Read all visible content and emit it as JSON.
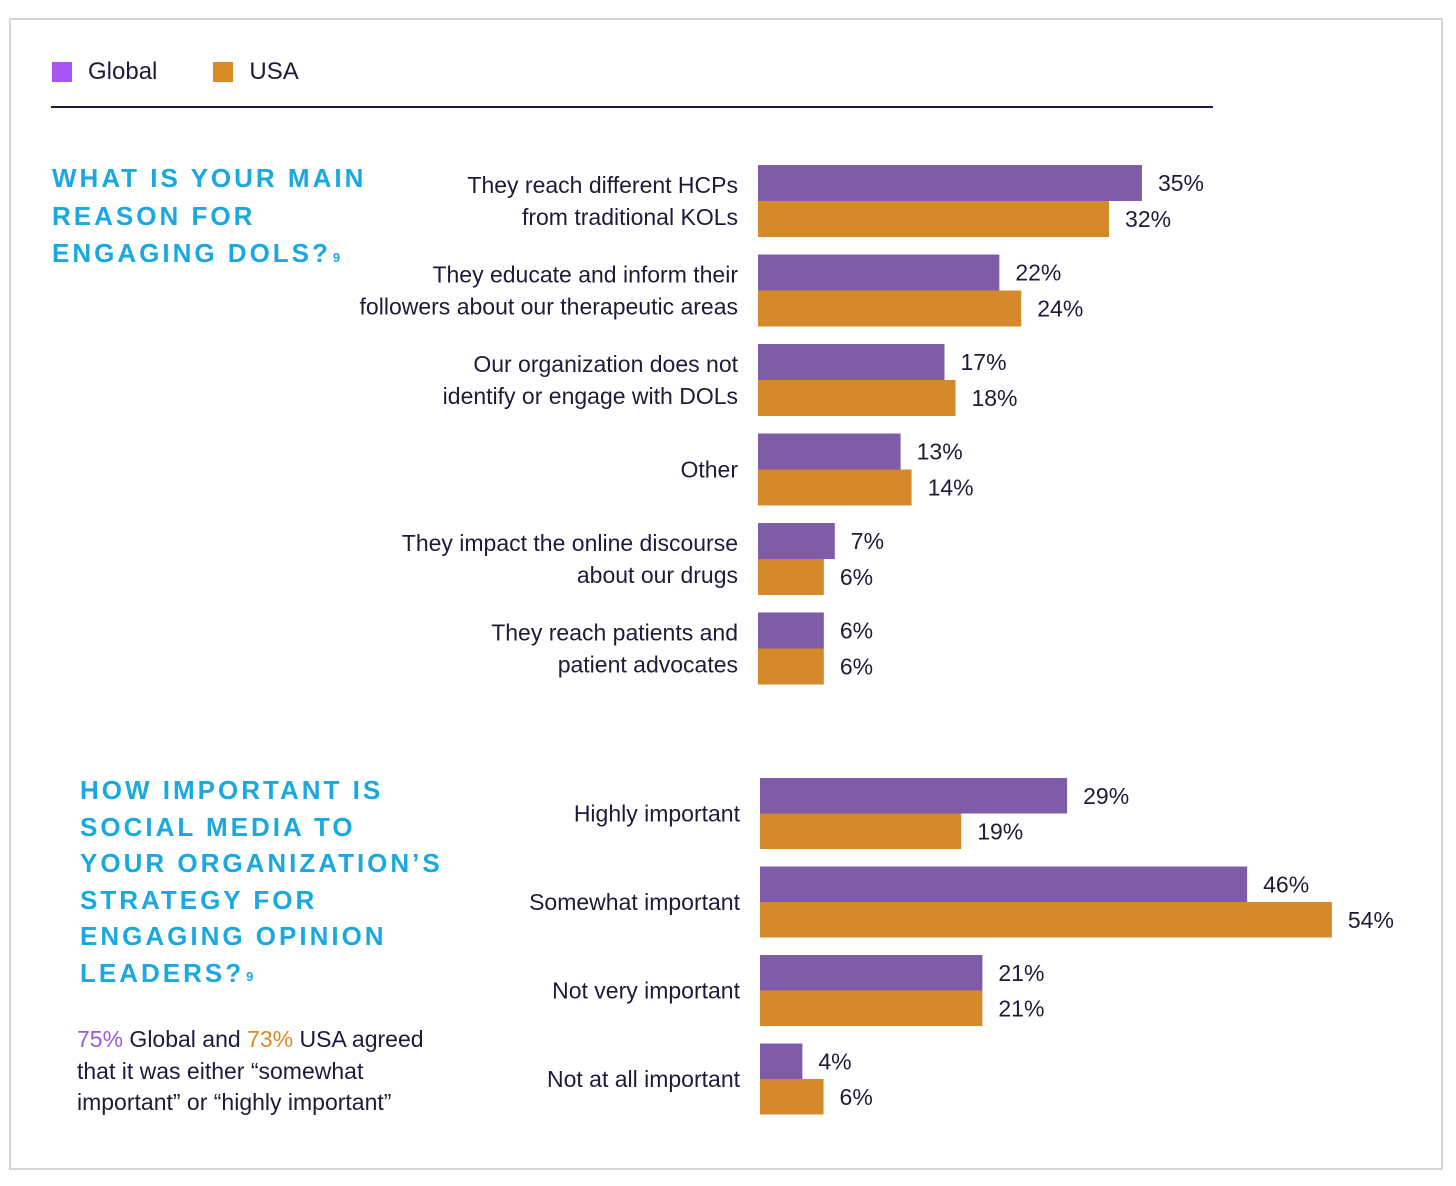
{
  "legend": {
    "global_label": "Global",
    "usa_label": "USA",
    "global_color": "#a855f7",
    "usa_color": "#d88a24"
  },
  "colors": {
    "global_bar": "#7f5ca8",
    "usa_bar": "#d4892a",
    "question_text": "#19a8e0"
  },
  "question1": {
    "text": "WHAT IS YOUR MAIN REASON FOR ENGAGING DOLS?",
    "footnote": "9"
  },
  "question2": {
    "text": "HOW IMPORTANT IS SOCIAL MEDIA TO YOUR ORGANIZATION’S STRATEGY FOR ENGAGING OPINION LEADERS?",
    "footnote": "9"
  },
  "note": {
    "global_pct": "75%",
    "mid1": " Global and ",
    "usa_pct": "73%",
    "rest": " USA agreed that it was either “somewhat important” or “highly important”"
  },
  "chart_data": [
    {
      "type": "bar",
      "orientation": "horizontal",
      "categories": [
        [
          "They reach different HCPs",
          "from traditional KOLs"
        ],
        [
          "They educate and inform their",
          "followers about our therapeutic areas"
        ],
        [
          "Our organization does not",
          "identify or engage with DOLs"
        ],
        [
          "Other"
        ],
        [
          "They impact the online discourse",
          "about our drugs"
        ],
        [
          "They reach patients and",
          "patient advocates"
        ]
      ],
      "series": [
        {
          "name": "Global",
          "values": [
            35,
            22,
            17,
            13,
            7,
            6
          ],
          "labels": [
            "35%",
            "22%",
            "17%",
            "13%",
            "7%",
            "6%"
          ]
        },
        {
          "name": "USA",
          "values": [
            32,
            24,
            18,
            14,
            6,
            6
          ],
          "labels": [
            "32%",
            "24%",
            "18%",
            "14%",
            "6%",
            "6%"
          ]
        }
      ],
      "unit": "%",
      "axis_visible": false,
      "grid": false
    },
    {
      "type": "bar",
      "orientation": "horizontal",
      "categories": [
        [
          "Highly important"
        ],
        [
          "Somewhat important"
        ],
        [
          "Not very important"
        ],
        [
          "Not at all  important"
        ]
      ],
      "series": [
        {
          "name": "Global",
          "values": [
            29,
            46,
            21,
            4
          ],
          "labels": [
            "29%",
            "46%",
            "21%",
            "4%"
          ]
        },
        {
          "name": "USA",
          "values": [
            19,
            54,
            21,
            6
          ],
          "labels": [
            "19%",
            "54%",
            "21%",
            "6%"
          ]
        }
      ],
      "unit": "%",
      "axis_visible": false,
      "grid": false
    }
  ]
}
